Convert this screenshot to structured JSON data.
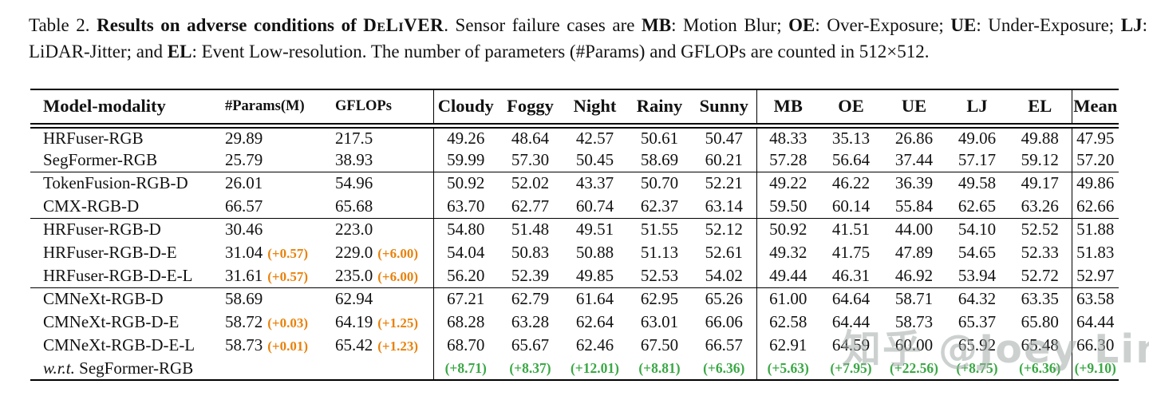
{
  "caption": {
    "segments": [
      {
        "text": "Table 2.  ",
        "style": "normal"
      },
      {
        "text": "Results on adverse conditions of ",
        "style": "bold"
      },
      {
        "text": "DeLiVER",
        "style": "smallcaps-bold"
      },
      {
        "text": ". Sensor failure cases are ",
        "style": "normal"
      },
      {
        "text": "MB",
        "style": "bold"
      },
      {
        "text": ": Motion Blur; ",
        "style": "normal"
      },
      {
        "text": "OE",
        "style": "bold"
      },
      {
        "text": ": Over-Exposure; ",
        "style": "normal"
      },
      {
        "text": "UE",
        "style": "bold"
      },
      {
        "text": ": Under-Exposure; ",
        "style": "normal"
      },
      {
        "text": "LJ",
        "style": "bold"
      },
      {
        "text": ": LiDAR-Jitter; and ",
        "style": "normal"
      },
      {
        "text": "EL",
        "style": "bold"
      },
      {
        "text": ": Event Low-resolution. The number of parameters (#Params) and GFLOPs are counted in 512×512.",
        "style": "normal"
      }
    ]
  },
  "table": {
    "columns": [
      "Model-modality",
      "#Params(M)",
      "GFLOPs",
      "Cloudy",
      "Foggy",
      "Night",
      "Rainy",
      "Sunny",
      "MB",
      "OE",
      "UE",
      "LJ",
      "EL",
      "Mean"
    ],
    "rows": [
      {
        "model_prefix_italic": "",
        "model": "HRFuser-RGB",
        "params": "29.89",
        "params_delta": "",
        "gflops": "217.5",
        "gflops_delta": "",
        "values": [
          "49.26",
          "48.64",
          "42.57",
          "50.61",
          "50.47",
          "48.33",
          "35.13",
          "26.86",
          "49.06",
          "49.88"
        ],
        "mean": "47.95",
        "group_start": false,
        "green": false
      },
      {
        "model_prefix_italic": "",
        "model": "SegFormer-RGB",
        "params": "25.79",
        "params_delta": "",
        "gflops": "38.93",
        "gflops_delta": "",
        "values": [
          "59.99",
          "57.30",
          "50.45",
          "58.69",
          "60.21",
          "57.28",
          "56.64",
          "37.44",
          "57.17",
          "59.12"
        ],
        "mean": "57.20",
        "group_start": false,
        "green": false
      },
      {
        "model_prefix_italic": "",
        "model": "TokenFusion-RGB-D",
        "params": "26.01",
        "params_delta": "",
        "gflops": "54.96",
        "gflops_delta": "",
        "values": [
          "50.92",
          "52.02",
          "43.37",
          "50.70",
          "52.21",
          "49.22",
          "46.22",
          "36.39",
          "49.58",
          "49.17"
        ],
        "mean": "49.86",
        "group_start": true,
        "green": false
      },
      {
        "model_prefix_italic": "",
        "model": "CMX-RGB-D",
        "params": "66.57",
        "params_delta": "",
        "gflops": "65.68",
        "gflops_delta": "",
        "values": [
          "63.70",
          "62.77",
          "60.74",
          "62.37",
          "63.14",
          "59.50",
          "60.14",
          "55.84",
          "62.65",
          "63.26"
        ],
        "mean": "62.66",
        "group_start": false,
        "green": false
      },
      {
        "model_prefix_italic": "",
        "model": "HRFuser-RGB-D",
        "params": "30.46",
        "params_delta": "",
        "gflops": "223.0",
        "gflops_delta": "",
        "values": [
          "54.80",
          "51.48",
          "49.51",
          "51.55",
          "52.12",
          "50.92",
          "41.51",
          "44.00",
          "54.10",
          "52.52"
        ],
        "mean": "51.88",
        "group_start": true,
        "green": false
      },
      {
        "model_prefix_italic": "",
        "model": "HRFuser-RGB-D-E",
        "params": "31.04",
        "params_delta": "(+0.57)",
        "gflops": "229.0",
        "gflops_delta": "(+6.00)",
        "values": [
          "54.04",
          "50.83",
          "50.88",
          "51.13",
          "52.61",
          "49.32",
          "41.75",
          "47.89",
          "54.65",
          "52.33"
        ],
        "mean": "51.83",
        "group_start": false,
        "green": false
      },
      {
        "model_prefix_italic": "",
        "model": "HRFuser-RGB-D-E-L",
        "params": "31.61",
        "params_delta": "(+0.57)",
        "gflops": "235.0",
        "gflops_delta": "(+6.00)",
        "values": [
          "56.20",
          "52.39",
          "49.85",
          "52.53",
          "54.02",
          "49.44",
          "46.31",
          "46.92",
          "53.94",
          "52.72"
        ],
        "mean": "52.97",
        "group_start": false,
        "green": false
      },
      {
        "model_prefix_italic": "",
        "model": "CMNeXt-RGB-D",
        "params": "58.69",
        "params_delta": "",
        "gflops": "62.94",
        "gflops_delta": "",
        "values": [
          "67.21",
          "62.79",
          "61.64",
          "62.95",
          "65.26",
          "61.00",
          "64.64",
          "58.71",
          "64.32",
          "63.35"
        ],
        "mean": "63.58",
        "group_start": true,
        "green": false
      },
      {
        "model_prefix_italic": "",
        "model": "CMNeXt-RGB-D-E",
        "params": "58.72",
        "params_delta": "(+0.03)",
        "gflops": "64.19",
        "gflops_delta": "(+1.25)",
        "values": [
          "68.28",
          "63.28",
          "62.64",
          "63.01",
          "66.06",
          "62.58",
          "64.44",
          "58.73",
          "65.37",
          "65.80"
        ],
        "mean": "64.44",
        "group_start": false,
        "green": false
      },
      {
        "model_prefix_italic": "",
        "model": "CMNeXt-RGB-D-E-L",
        "params": "58.73",
        "params_delta": "(+0.01)",
        "gflops": "65.42",
        "gflops_delta": "(+1.23)",
        "values": [
          "68.70",
          "65.67",
          "62.46",
          "67.50",
          "66.57",
          "62.91",
          "64.59",
          "60.00",
          "65.92",
          "65.48"
        ],
        "mean": "66.30",
        "group_start": false,
        "green": false
      },
      {
        "model_prefix_italic": "w.r.t.",
        "model": " SegFormer-RGB",
        "params": "",
        "params_delta": "",
        "gflops": "",
        "gflops_delta": "",
        "values": [
          "(+8.71)",
          "(+8.37)",
          "(+12.01)",
          "(+8.81)",
          "(+6.36)",
          "(+5.63)",
          "(+7.95)",
          "(+22.56)",
          "(+8.75)",
          "(+6.36)"
        ],
        "mean": "(+9.10)",
        "group_start": false,
        "green": true
      }
    ]
  },
  "watermark": {
    "text": "知乎 @Joey Lin"
  },
  "colors": {
    "text_black": "#121212",
    "delta_orange": "#e8820c",
    "delta_green": "#3aa845",
    "watermark_gray": "#a4adaa",
    "background": "#ffffff"
  }
}
